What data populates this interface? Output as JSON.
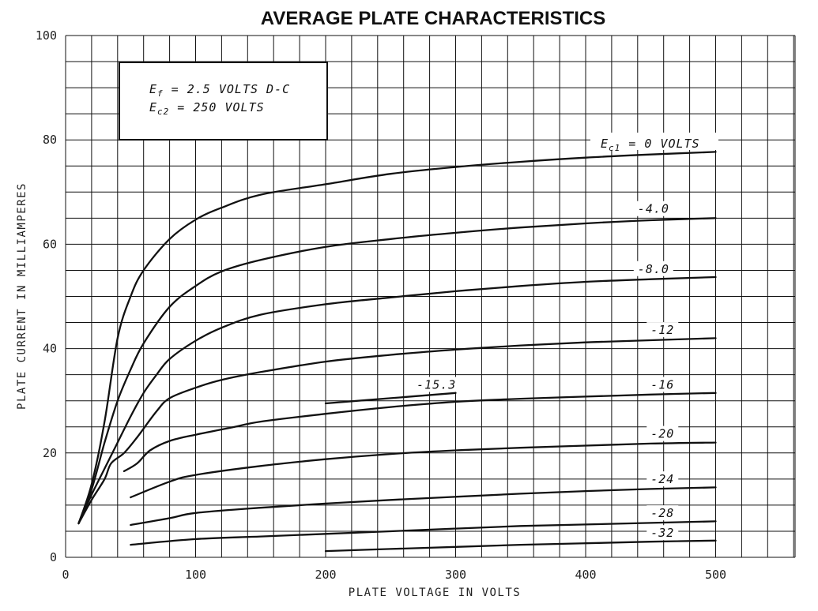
{
  "chart_data": {
    "type": "line",
    "title": "AVERAGE PLATE CHARACTERISTICS",
    "xlabel": "PLATE VOLTAGE IN VOLTS",
    "ylabel": "PLATE CURRENT IN MILLIAMPERES",
    "xlim": [
      0,
      560
    ],
    "ylim": [
      0,
      100
    ],
    "x_ticks": [
      0,
      100,
      200,
      300,
      400,
      500
    ],
    "x_tick_labels": [
      "0",
      "100",
      "200",
      "300",
      "400",
      "500"
    ],
    "y_ticks": [
      0,
      20,
      40,
      60,
      80,
      100
    ],
    "y_tick_labels": [
      "0",
      "20",
      "40",
      "60",
      "80",
      "100"
    ],
    "grid": true,
    "annotation": {
      "line1": {
        "main": "E",
        "sub": "f",
        "rest": " = 2.5 VOLTS D-C"
      },
      "line2": {
        "main": "E",
        "sub": "c2",
        "rest": " = 250 VOLTS"
      }
    },
    "series": [
      {
        "name": "E_c1 = 0 VOLTS",
        "label_main": "E",
        "label_sub": "c1",
        "label_rest": " = 0 VOLTS",
        "points": [
          [
            10,
            6.5
          ],
          [
            20,
            14
          ],
          [
            30,
            26
          ],
          [
            40,
            42
          ],
          [
            50,
            50
          ],
          [
            60,
            55
          ],
          [
            80,
            61
          ],
          [
            100,
            64.7
          ],
          [
            120,
            67
          ],
          [
            150,
            69.5
          ],
          [
            200,
            71.5
          ],
          [
            250,
            73.5
          ],
          [
            300,
            74.8
          ],
          [
            350,
            75.8
          ],
          [
            400,
            76.6
          ],
          [
            450,
            77.2
          ],
          [
            500,
            77.7
          ]
        ]
      },
      {
        "name": "-4.0",
        "points": [
          [
            10,
            6.5
          ],
          [
            20,
            13
          ],
          [
            30,
            22
          ],
          [
            40,
            30
          ],
          [
            50,
            36
          ],
          [
            60,
            41
          ],
          [
            80,
            48
          ],
          [
            100,
            52
          ],
          [
            120,
            54.8
          ],
          [
            150,
            57
          ],
          [
            200,
            59.5
          ],
          [
            250,
            61
          ],
          [
            300,
            62.2
          ],
          [
            350,
            63.2
          ],
          [
            400,
            64
          ],
          [
            450,
            64.6
          ],
          [
            500,
            65
          ]
        ]
      },
      {
        "name": "-8.0",
        "points": [
          [
            10,
            6.5
          ],
          [
            20,
            12
          ],
          [
            30,
            17
          ],
          [
            40,
            22
          ],
          [
            50,
            27
          ],
          [
            60,
            31.5
          ],
          [
            70,
            35
          ],
          [
            80,
            38
          ],
          [
            100,
            41.5
          ],
          [
            120,
            44
          ],
          [
            150,
            46.5
          ],
          [
            200,
            48.5
          ],
          [
            250,
            49.8
          ],
          [
            300,
            51
          ],
          [
            350,
            52
          ],
          [
            400,
            52.8
          ],
          [
            450,
            53.3
          ],
          [
            500,
            53.7
          ]
        ]
      },
      {
        "name": "-12",
        "points": [
          [
            10,
            6.5
          ],
          [
            20,
            11
          ],
          [
            30,
            15
          ],
          [
            35,
            18
          ],
          [
            45,
            20
          ],
          [
            55,
            23
          ],
          [
            70,
            28
          ],
          [
            80,
            30.5
          ],
          [
            100,
            32.5
          ],
          [
            120,
            34
          ],
          [
            150,
            35.5
          ],
          [
            200,
            37.5
          ],
          [
            250,
            38.8
          ],
          [
            300,
            39.8
          ],
          [
            350,
            40.6
          ],
          [
            400,
            41.2
          ],
          [
            450,
            41.6
          ],
          [
            500,
            42
          ]
        ]
      },
      {
        "name": "-16",
        "points": [
          [
            45,
            16.5
          ],
          [
            55,
            18
          ],
          [
            65,
            20.5
          ],
          [
            80,
            22.3
          ],
          [
            100,
            23.5
          ],
          [
            130,
            25
          ],
          [
            150,
            26
          ],
          [
            200,
            27.5
          ],
          [
            250,
            28.8
          ],
          [
            300,
            29.8
          ],
          [
            350,
            30.4
          ],
          [
            400,
            30.8
          ],
          [
            450,
            31.2
          ],
          [
            500,
            31.5
          ]
        ]
      },
      {
        "name": "-15.3",
        "points": [
          [
            200,
            29.5
          ],
          [
            250,
            30.5
          ],
          [
            300,
            31.5
          ]
        ]
      },
      {
        "name": "-20",
        "points": [
          [
            50,
            11.5
          ],
          [
            80,
            14.5
          ],
          [
            100,
            15.8
          ],
          [
            150,
            17.5
          ],
          [
            200,
            18.8
          ],
          [
            250,
            19.8
          ],
          [
            300,
            20.5
          ],
          [
            350,
            21
          ],
          [
            400,
            21.4
          ],
          [
            450,
            21.8
          ],
          [
            500,
            22
          ]
        ]
      },
      {
        "name": "-24",
        "points": [
          [
            50,
            6.2
          ],
          [
            80,
            7.5
          ],
          [
            100,
            8.5
          ],
          [
            150,
            9.5
          ],
          [
            200,
            10.3
          ],
          [
            250,
            11
          ],
          [
            300,
            11.6
          ],
          [
            350,
            12.2
          ],
          [
            400,
            12.7
          ],
          [
            450,
            13.1
          ],
          [
            500,
            13.4
          ]
        ]
      },
      {
        "name": "-28",
        "points": [
          [
            50,
            2.4
          ],
          [
            100,
            3.5
          ],
          [
            150,
            4
          ],
          [
            200,
            4.5
          ],
          [
            250,
            5
          ],
          [
            300,
            5.5
          ],
          [
            350,
            6
          ],
          [
            400,
            6.3
          ],
          [
            450,
            6.6
          ],
          [
            500,
            6.9
          ]
        ]
      },
      {
        "name": "-32",
        "points": [
          [
            200,
            1.2
          ],
          [
            250,
            1.6
          ],
          [
            300,
            2
          ],
          [
            350,
            2.4
          ],
          [
            400,
            2.7
          ],
          [
            450,
            3
          ],
          [
            500,
            3.2
          ]
        ]
      }
    ],
    "curve_labels": [
      {
        "series": "-4.0",
        "text": "-4.0",
        "at": [
          440,
          66
        ]
      },
      {
        "series": "-8.0",
        "text": "-8.0",
        "at": [
          440,
          54.5
        ]
      },
      {
        "series": "-12",
        "text": "-12",
        "at": [
          450,
          42.8
        ]
      },
      {
        "series": "-16",
        "text": "-16",
        "at": [
          450,
          32.3
        ]
      },
      {
        "series": "-15.3",
        "text": "-15.3",
        "at": [
          270,
          32.3
        ]
      },
      {
        "series": "-20",
        "text": "-20",
        "at": [
          450,
          22.9
        ]
      },
      {
        "series": "-24",
        "text": "-24",
        "at": [
          450,
          14.2
        ]
      },
      {
        "series": "-28",
        "text": "-28",
        "at": [
          450,
          7.7
        ]
      },
      {
        "series": "-32",
        "text": "-32",
        "at": [
          450,
          3.9
        ]
      }
    ]
  }
}
